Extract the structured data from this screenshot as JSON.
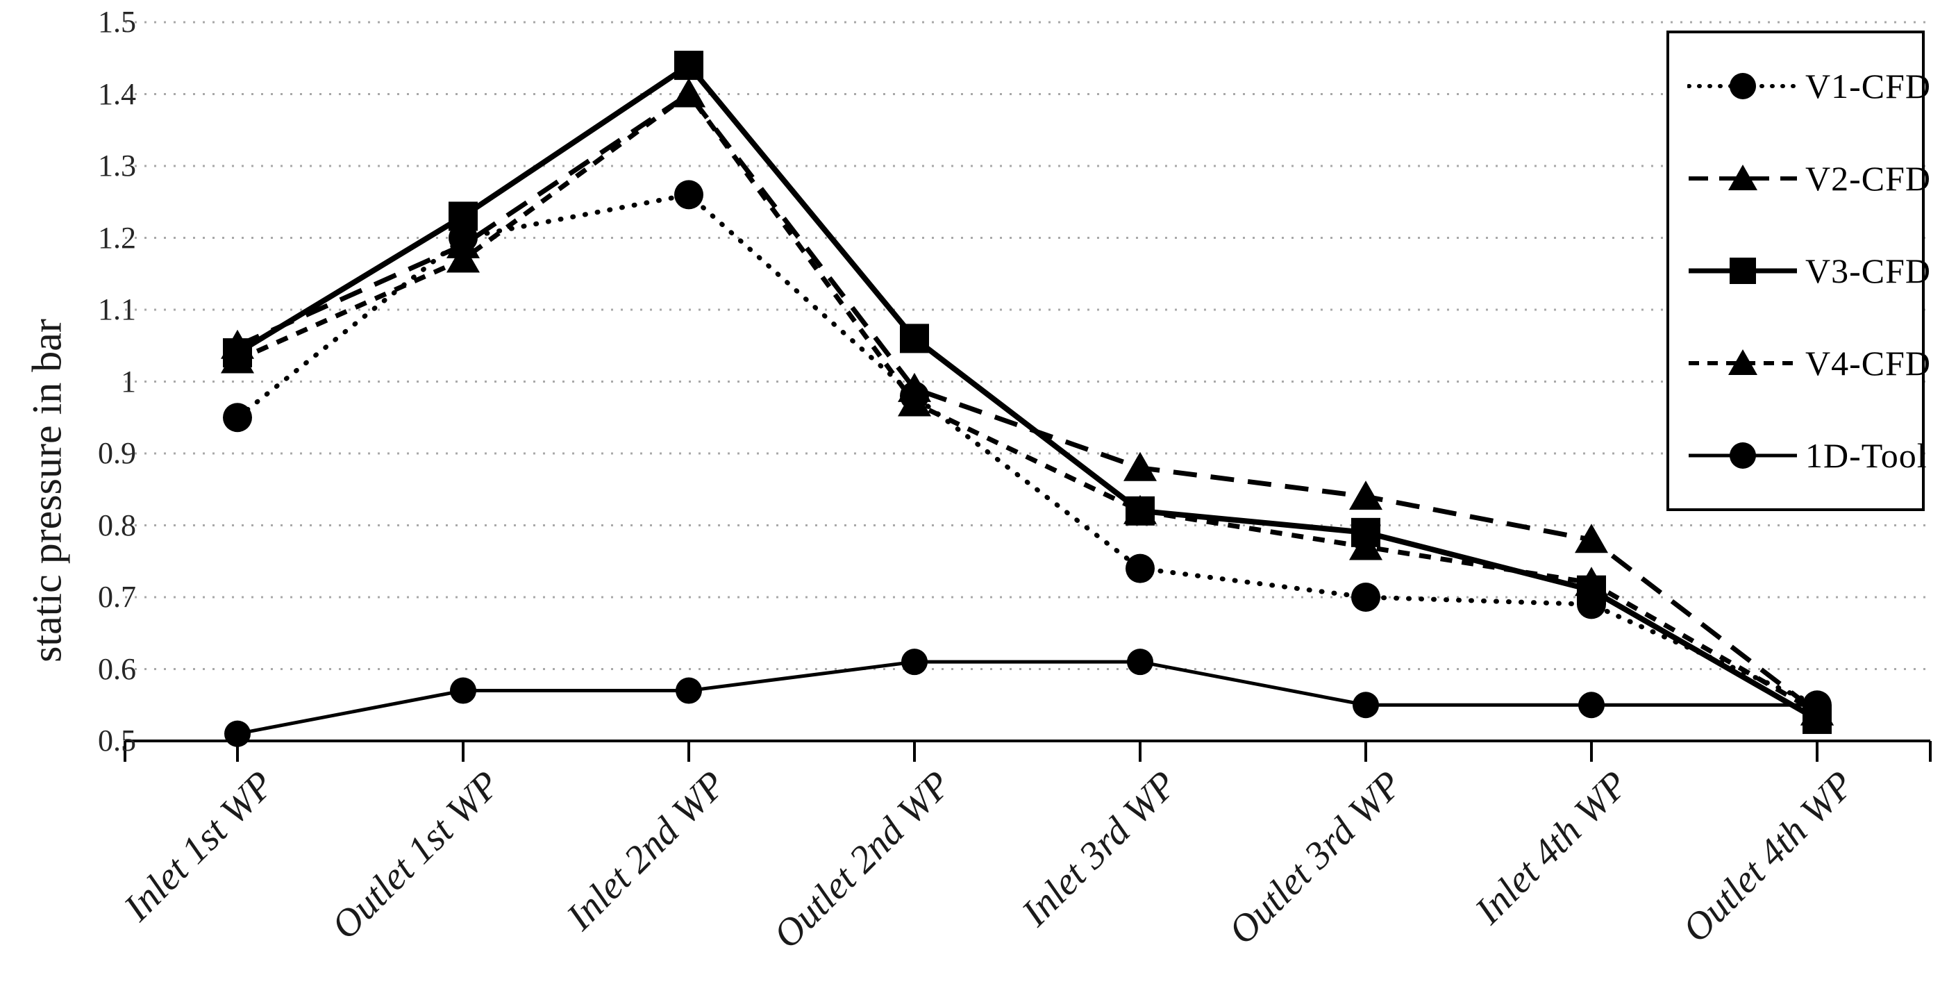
{
  "chart_data": {
    "type": "line",
    "title": "",
    "xlabel": "",
    "ylabel": "static pressure in bar",
    "ylim": [
      0.5,
      1.5
    ],
    "ytick_step": 0.1,
    "ytick_labels": [
      "1.5",
      "1.4",
      "1.3",
      "1.2",
      "1.1",
      "1",
      "0.9",
      "0.8",
      "0.7",
      "0.6",
      "0.5"
    ],
    "ytick_values": [
      1.5,
      1.4,
      1.3,
      1.2,
      1.1,
      1.0,
      0.9,
      0.8,
      0.7,
      0.6,
      0.5
    ],
    "grid": "horizontal-dotted",
    "legend_position": "top-right",
    "categories": [
      "Inlet 1st WP",
      "Outlet 1st WP",
      "Inlet 2nd WP",
      "Outlet 2nd WP",
      "Inlet 3rd WP",
      "Outlet 3rd WP",
      "Inlet 4th WP",
      "Outlet 4th WP"
    ],
    "series": [
      {
        "name": "V1-CFD",
        "marker": "circle",
        "line": "dotted",
        "values": [
          0.95,
          1.2,
          1.26,
          0.98,
          0.74,
          0.7,
          0.69,
          0.55
        ]
      },
      {
        "name": "V2-CFD",
        "marker": "triangle",
        "line": "dashed-long",
        "values": [
          1.05,
          1.19,
          1.4,
          0.99,
          0.88,
          0.84,
          0.78,
          0.54
        ]
      },
      {
        "name": "V3-CFD",
        "marker": "square",
        "line": "solid",
        "values": [
          1.04,
          1.23,
          1.44,
          1.06,
          0.82,
          0.79,
          0.71,
          0.53
        ]
      },
      {
        "name": "V4-CFD",
        "marker": "triangle",
        "line": "dashed-short",
        "values": [
          1.03,
          1.17,
          1.4,
          0.97,
          0.82,
          0.77,
          0.72,
          0.54
        ]
      },
      {
        "name": "1D-Tool",
        "marker": "circle",
        "line": "solid-thin",
        "values": [
          0.51,
          0.57,
          0.57,
          0.61,
          0.61,
          0.55,
          0.55,
          0.55
        ]
      }
    ],
    "colors": {
      "series": "#000000",
      "grid": "#a8a8a8",
      "axis": "#000000",
      "background": "#ffffff"
    }
  }
}
